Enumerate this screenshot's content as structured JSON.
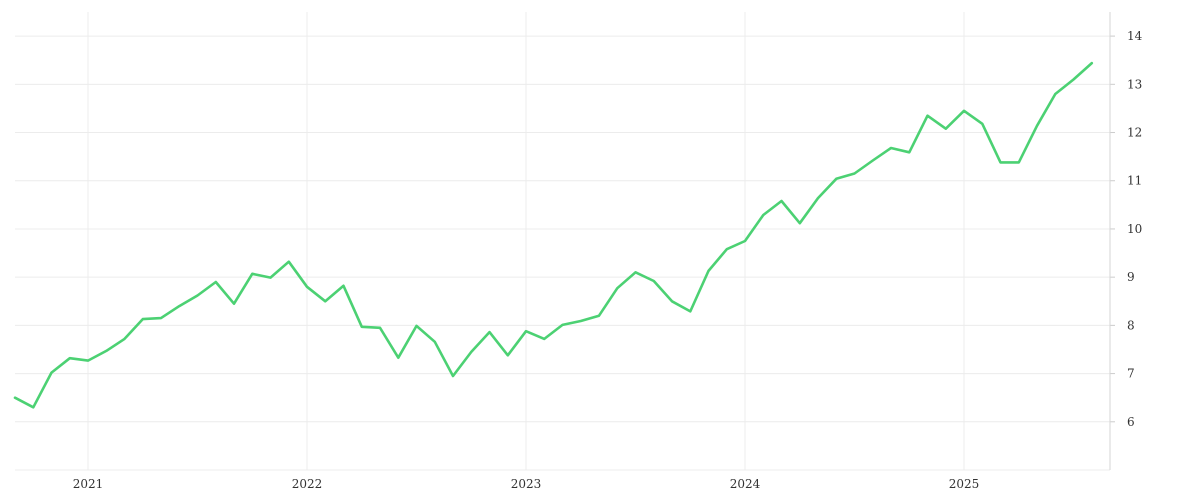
{
  "chart_data": {
    "type": "line",
    "title": "",
    "xlabel": "",
    "ylabel": "",
    "x_ticks": [
      "2021",
      "2022",
      "2023",
      "2024",
      "2025"
    ],
    "y_ticks": [
      "6",
      "7",
      "8",
      "9",
      "10",
      "11",
      "12",
      "13",
      "14"
    ],
    "xlim": [
      "2020-09",
      "2025-09"
    ],
    "ylim": [
      5,
      14.5
    ],
    "y_axis_position": "right",
    "grid": true,
    "legend": "none",
    "series": [
      {
        "color": "#4cd173",
        "x": [
          "2020-09",
          "2020-10",
          "2020-11",
          "2020-12",
          "2021-01",
          "2021-02",
          "2021-03",
          "2021-04",
          "2021-05",
          "2021-06",
          "2021-07",
          "2021-08",
          "2021-09",
          "2021-10",
          "2021-11",
          "2021-12",
          "2022-01",
          "2022-02",
          "2022-03",
          "2022-04",
          "2022-05",
          "2022-06",
          "2022-07",
          "2022-08",
          "2022-09",
          "2022-10",
          "2022-11",
          "2022-12",
          "2023-01",
          "2023-02",
          "2023-03",
          "2023-04",
          "2023-05",
          "2023-06",
          "2023-07",
          "2023-08",
          "2023-09",
          "2023-10",
          "2023-11",
          "2023-12",
          "2024-01",
          "2024-02",
          "2024-03",
          "2024-04",
          "2024-05",
          "2024-06",
          "2024-07",
          "2024-08",
          "2024-09",
          "2024-10",
          "2024-11",
          "2024-12",
          "2025-01",
          "2025-02",
          "2025-03",
          "2025-04",
          "2025-05",
          "2025-06",
          "2025-07",
          "2025-08"
        ],
        "values": [
          6.5,
          6.3,
          7.02,
          7.32,
          7.27,
          7.47,
          7.72,
          8.13,
          8.15,
          8.4,
          8.62,
          8.9,
          8.45,
          9.07,
          8.99,
          9.32,
          8.8,
          8.5,
          8.82,
          7.97,
          7.95,
          7.33,
          7.99,
          7.66,
          6.95,
          7.45,
          7.86,
          7.38,
          7.88,
          7.72,
          8.01,
          8.09,
          8.2,
          8.77,
          9.1,
          8.92,
          8.5,
          8.29,
          9.13,
          9.58,
          9.75,
          10.29,
          10.58,
          10.12,
          10.64,
          11.04,
          11.15,
          11.42,
          11.68,
          11.59,
          12.35,
          12.08,
          12.45,
          12.18,
          11.38,
          11.38,
          12.14,
          12.8,
          13.1,
          13.44
        ]
      }
    ]
  }
}
